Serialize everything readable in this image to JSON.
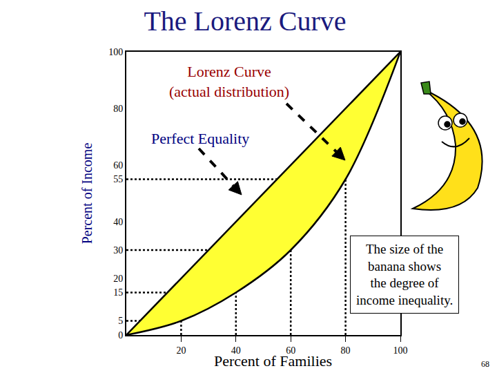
{
  "chart_data": {
    "type": "line",
    "title": "The Lorenz Curve",
    "x_label": "Percent of Families",
    "y_label": "Percent of Income",
    "x": [
      0,
      20,
      40,
      60,
      80,
      100
    ],
    "series": [
      {
        "type": "line",
        "color": "#000000",
        "values": [
          0,
          20,
          40,
          60,
          80,
          100
        ]
      },
      {
        "type": "area",
        "color": "#ffff33",
        "values": [
          0,
          5,
          15,
          30,
          55,
          100
        ]
      }
    ],
    "xlim": [
      0,
      100
    ],
    "ylim": [
      0,
      100
    ],
    "xticks": [
      20,
      40,
      60,
      80,
      100
    ],
    "yticks": [
      0,
      5,
      15,
      20,
      30,
      40,
      55,
      60,
      80,
      100
    ],
    "grid": false,
    "annotations": [
      {
        "text": [
          "Lorenz Curve",
          "(actual distribution)"
        ]
      },
      {
        "text": [
          "Perfect Equality"
        ]
      },
      {
        "text": [
          "The size of the",
          "banana shows",
          "the degree of",
          "income inequality."
        ]
      },
      {
        "text": [
          "68"
        ]
      }
    ]
  }
}
